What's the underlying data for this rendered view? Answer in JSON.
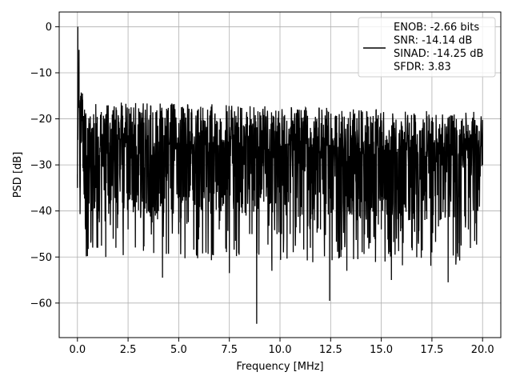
{
  "chart_data": {
    "type": "line",
    "title": "",
    "xlabel": "Frequency [MHz]",
    "ylabel": "PSD [dB]",
    "xlim": [
      -0.9,
      20.9
    ],
    "ylim": [
      -67.5,
      3.2
    ],
    "grid": true,
    "legend_position": "top-right",
    "series_color": "#000000",
    "x_ticks": [
      0.0,
      2.5,
      5.0,
      7.5,
      10.0,
      12.5,
      15.0,
      17.5,
      20.0
    ],
    "x_tick_labels": [
      "0.0",
      "2.5",
      "5.0",
      "7.5",
      "10.0",
      "12.5",
      "15.0",
      "17.5",
      "20.0"
    ],
    "y_ticks": [
      0,
      -10,
      -20,
      -30,
      -40,
      -50,
      -60
    ],
    "y_tick_labels": [
      "0",
      "−10",
      "−20",
      "−30",
      "−40",
      "−50",
      "−60"
    ],
    "legend_lines": [
      "ENOB: -2.66 bits",
      "SNR: -14.14 dB",
      "SINAD: -14.25 dB",
      "SFDR: 3.83"
    ],
    "series": [
      {
        "x": [
          0.0,
          0.02,
          0.05,
          0.08,
          0.12,
          0.16,
          0.2,
          0.25,
          0.3,
          0.35,
          0.4,
          0.5,
          0.6,
          0.7,
          0.8,
          0.9,
          1.0,
          1.2,
          1.4,
          1.6,
          1.9,
          2.2,
          2.5,
          2.8,
          3.2,
          3.6,
          4.0,
          4.2,
          4.5,
          5.0,
          5.5,
          6.0,
          6.5,
          7.0,
          7.5,
          8.0,
          8.5,
          8.85,
          9.2,
          9.6,
          10.0,
          10.5,
          11.0,
          11.5,
          12.0,
          12.45,
          12.8,
          13.3,
          13.8,
          14.4,
          15.0,
          15.5,
          16.0,
          16.5,
          17.0,
          17.5,
          17.9,
          18.3,
          18.8,
          19.3,
          19.7,
          20.0
        ],
        "y": [
          -35,
          0,
          -12,
          -5,
          -30,
          -15,
          -25,
          -20,
          -28,
          -18,
          -44,
          -22,
          -30,
          -40,
          -19,
          -35,
          -48,
          -25,
          -50,
          -28,
          -48,
          -30,
          -44,
          -35,
          -38,
          -32,
          -40,
          -54.5,
          -36,
          -45,
          -34,
          -42,
          -38,
          -44,
          -53.5,
          -40,
          -45,
          -64.5,
          -38,
          -53,
          -36,
          -45,
          -41,
          -48,
          -44,
          -59.5,
          -40,
          -53,
          -42,
          -47,
          -44,
          -55,
          -41,
          -48,
          -43,
          -49,
          -42,
          -55.5,
          -47,
          -44,
          -42,
          -30
        ]
      }
    ]
  }
}
